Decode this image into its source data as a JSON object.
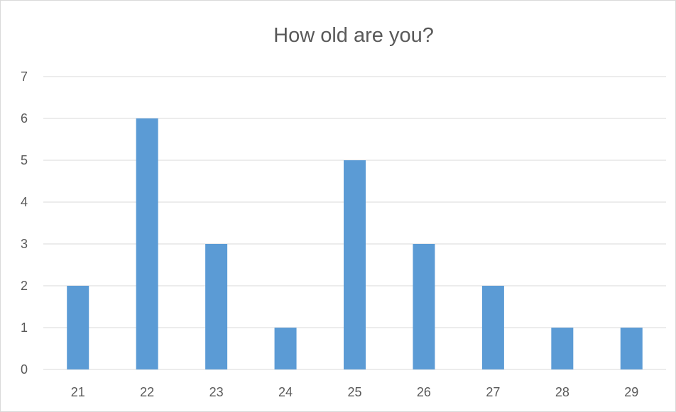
{
  "chart_data": {
    "type": "bar",
    "title": "How old are you?",
    "categories": [
      "21",
      "22",
      "23",
      "24",
      "25",
      "26",
      "27",
      "28",
      "29"
    ],
    "values": [
      2,
      6,
      3,
      1,
      5,
      3,
      2,
      1,
      1
    ],
    "xlabel": "",
    "ylabel": "",
    "ylim": [
      0,
      7
    ],
    "yticks": [
      0,
      1,
      2,
      3,
      4,
      5,
      6,
      7
    ],
    "grid": true,
    "legend": "none",
    "bar_color": "#5b9bd5",
    "grid_color": "#d9d9d9",
    "text_color": "#595959"
  }
}
